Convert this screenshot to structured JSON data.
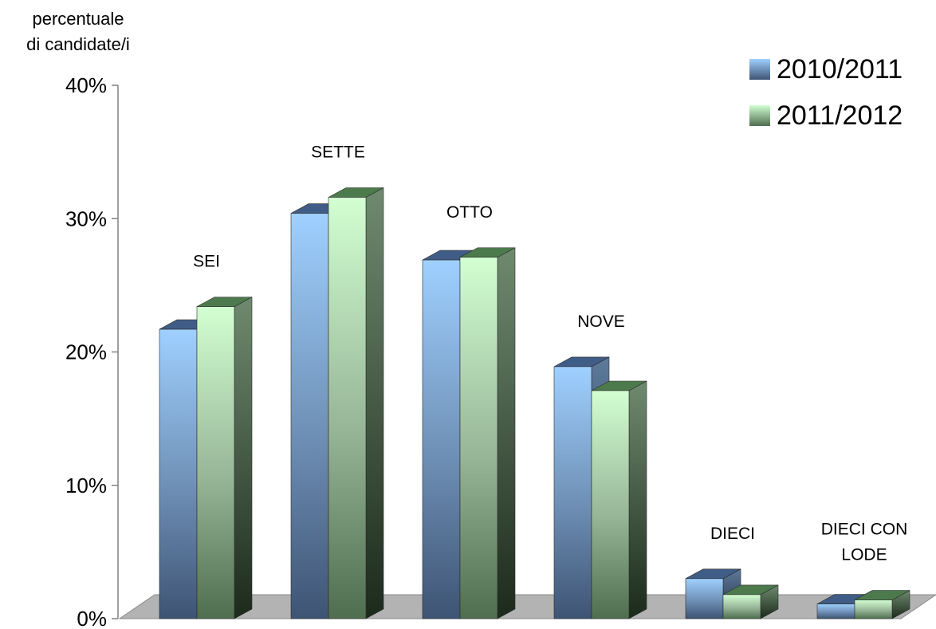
{
  "chart_data": {
    "type": "bar",
    "ylabel_lines": [
      "percentuale",
      "di candidate/i"
    ],
    "categories": [
      "SEI",
      "SETTE",
      "OTTO",
      "NOVE",
      "DIECI",
      "DIECI CON\nLODE"
    ],
    "series": [
      {
        "name": "2010/2011",
        "values": [
          21.7,
          30.4,
          26.9,
          18.9,
          3.0,
          1.1
        ],
        "color": "#99c9ff",
        "side_color": "#4a6482",
        "top_color": "#3f5d86"
      },
      {
        "name": "2011/2012",
        "values": [
          23.4,
          31.6,
          27.1,
          17.1,
          1.8,
          1.4
        ],
        "color": "#ccffcc",
        "side_color": "#5f7a5f",
        "top_color": "#4c7a4c"
      }
    ],
    "ylim": [
      0,
      40
    ],
    "yticks": [
      "0%",
      "10%",
      "20%",
      "30%",
      "40%"
    ],
    "legend_position": "top-right",
    "grid": false
  }
}
